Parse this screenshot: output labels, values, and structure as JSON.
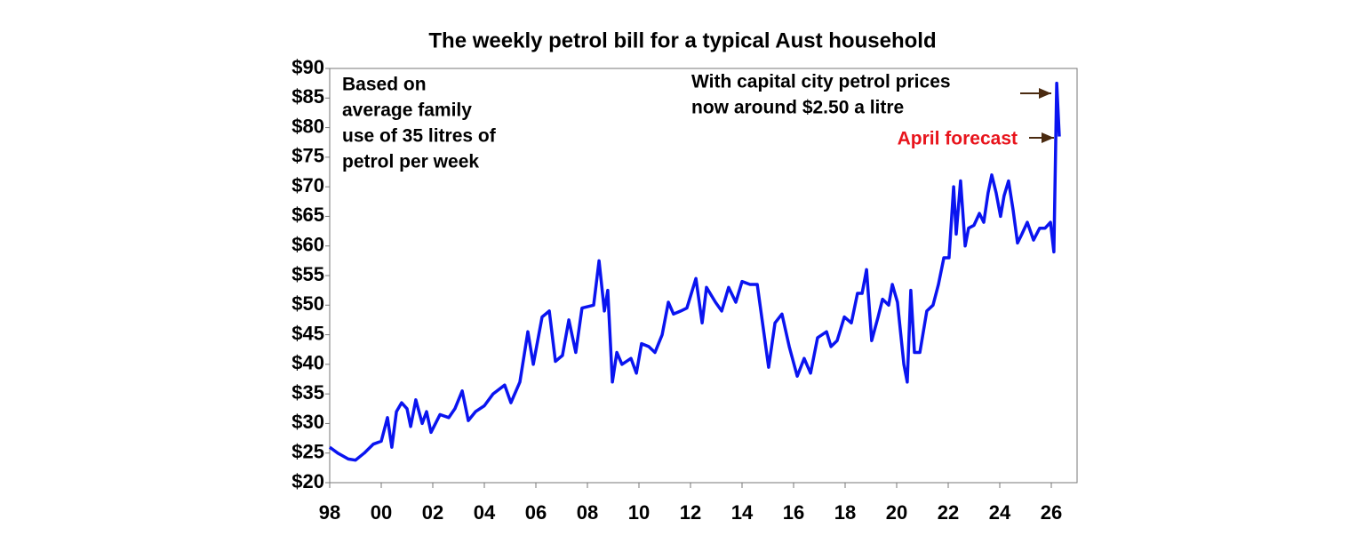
{
  "chart_data": {
    "type": "line",
    "title": "The weekly petrol bill for a typical Aust household",
    "annotations": {
      "note_left": [
        "Based on",
        "average family",
        "use of 35 litres of",
        "petrol per week"
      ],
      "note_right": [
        "With capital city petrol prices",
        "now around $2.50 a litre"
      ],
      "forecast": "April forecast"
    },
    "color": "#0a14f0",
    "forecast_color": "#e8141c",
    "x": [
      1998.0,
      1998.31,
      1998.72,
      1999.0,
      1999.34,
      1999.69,
      2000.0,
      2000.24,
      2000.41,
      2000.59,
      2000.79,
      2001.0,
      2001.14,
      2001.34,
      2001.59,
      2001.76,
      2001.93,
      2002.28,
      2002.62,
      2002.86,
      2003.14,
      2003.38,
      2003.66,
      2004.0,
      2004.34,
      2004.79,
      2005.03,
      2005.38,
      2005.69,
      2005.9,
      2006.24,
      2006.52,
      2006.76,
      2007.03,
      2007.28,
      2007.55,
      2007.79,
      2008.24,
      2008.45,
      2008.66,
      2008.79,
      2008.97,
      2009.14,
      2009.34,
      2009.69,
      2009.9,
      2010.1,
      2010.38,
      2010.62,
      2010.9,
      2011.14,
      2011.34,
      2011.62,
      2011.86,
      2012.21,
      2012.45,
      2012.62,
      2012.97,
      2013.21,
      2013.48,
      2013.76,
      2014.0,
      2014.31,
      2014.59,
      2014.86,
      2015.03,
      2015.28,
      2015.55,
      2015.83,
      2016.14,
      2016.41,
      2016.66,
      2016.93,
      2017.28,
      2017.45,
      2017.69,
      2017.97,
      2018.24,
      2018.48,
      2018.66,
      2018.83,
      2019.03,
      2019.28,
      2019.45,
      2019.69,
      2019.83,
      2020.03,
      2020.28,
      2020.41,
      2020.55,
      2020.69,
      2020.9,
      2021.17,
      2021.41,
      2021.62,
      2021.83,
      2022.03,
      2022.21,
      2022.31,
      2022.48,
      2022.66,
      2022.79,
      2023.0,
      2023.21,
      2023.38,
      2023.55,
      2023.69,
      2023.86,
      2024.03,
      2024.17,
      2024.34,
      2024.52,
      2024.69,
      2024.86,
      2025.07,
      2025.31,
      2025.55,
      2025.76,
      2025.97,
      2026.1,
      2026.21,
      2026.31
    ],
    "values": [
      26,
      25,
      24,
      23.8,
      25,
      26.5,
      27,
      31,
      26,
      32,
      33.5,
      32.5,
      29.5,
      34,
      30,
      32,
      28.5,
      31.5,
      31,
      32.5,
      35.5,
      30.5,
      32,
      33,
      35,
      36.5,
      33.5,
      37,
      45.5,
      40,
      48,
      49,
      40.5,
      41.5,
      47.5,
      42,
      49.5,
      50,
      57.5,
      49,
      52.5,
      37,
      42,
      40,
      41,
      38.5,
      43.5,
      43,
      42,
      45,
      50.5,
      48.5,
      49,
      49.5,
      54.5,
      47,
      53,
      50.5,
      49,
      53,
      50.5,
      54,
      53.5,
      53.5,
      45,
      39.5,
      47,
      48.5,
      43,
      38,
      41,
      38.5,
      44.5,
      45.5,
      43,
      44,
      48,
      47,
      52,
      52,
      56,
      44,
      48,
      51,
      50,
      53.5,
      50.5,
      40,
      37,
      52.5,
      42,
      42,
      49,
      50,
      53.5,
      58,
      58,
      70,
      62,
      71,
      60,
      63,
      63.5,
      65.5,
      64,
      69,
      72,
      69,
      65,
      68.5,
      71,
      66,
      60.5,
      62,
      64,
      61,
      63,
      63,
      64,
      59,
      87.5,
      78.5
    ],
    "xlim": [
      1998,
      2027
    ],
    "ylim": [
      20,
      90
    ],
    "xticks": [
      {
        "value": 1998,
        "label": "98"
      },
      {
        "value": 2000,
        "label": "00"
      },
      {
        "value": 2002,
        "label": "02"
      },
      {
        "value": 2004,
        "label": "04"
      },
      {
        "value": 2006,
        "label": "06"
      },
      {
        "value": 2008,
        "label": "08"
      },
      {
        "value": 2010,
        "label": "10"
      },
      {
        "value": 2012,
        "label": "12"
      },
      {
        "value": 2014,
        "label": "14"
      },
      {
        "value": 2016,
        "label": "16"
      },
      {
        "value": 2018,
        "label": "18"
      },
      {
        "value": 2020,
        "label": "20"
      },
      {
        "value": 2022,
        "label": "22"
      },
      {
        "value": 2024,
        "label": "24"
      },
      {
        "value": 2026,
        "label": "26"
      }
    ],
    "yticks": [
      {
        "value": 20,
        "label": "$20"
      },
      {
        "value": 25,
        "label": "$25"
      },
      {
        "value": 30,
        "label": "$30"
      },
      {
        "value": 35,
        "label": "$35"
      },
      {
        "value": 40,
        "label": "$40"
      },
      {
        "value": 45,
        "label": "$45"
      },
      {
        "value": 50,
        "label": "$50"
      },
      {
        "value": 55,
        "label": "$55"
      },
      {
        "value": 60,
        "label": "$60"
      },
      {
        "value": 65,
        "label": "$65"
      },
      {
        "value": 70,
        "label": "$70"
      },
      {
        "value": 75,
        "label": "$75"
      },
      {
        "value": 80,
        "label": "$80"
      },
      {
        "value": 85,
        "label": "$85"
      },
      {
        "value": 90,
        "label": "$90"
      }
    ],
    "grid": false
  }
}
